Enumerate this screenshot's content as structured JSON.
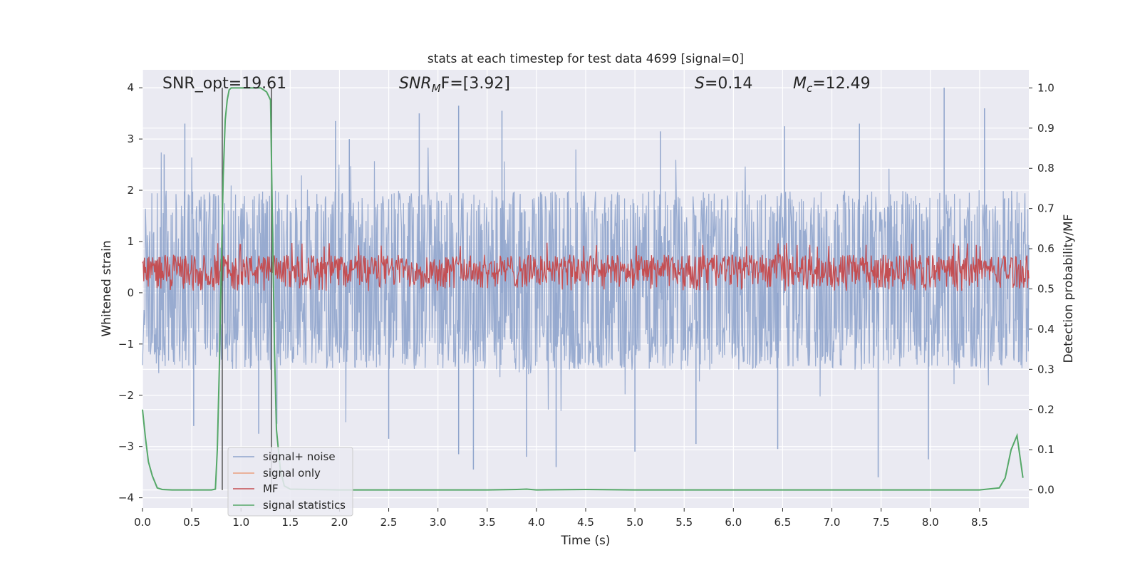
{
  "chart_data": {
    "type": "line",
    "title": "stats at each timestep for test data 4699 [signal=0]",
    "xlabel": "Time (s)",
    "ylabel": "Whitened strain",
    "ylabel_right": "Detection probability/MF",
    "xlim": [
      0,
      9
    ],
    "ylim": [
      -4.2,
      4.35
    ],
    "ylim_right": [
      -0.045,
      1.045
    ],
    "x_ticks": [
      0.0,
      0.5,
      1.0,
      1.5,
      2.0,
      2.5,
      3.0,
      3.5,
      4.0,
      4.5,
      5.0,
      5.5,
      6.0,
      6.5,
      7.0,
      7.5,
      8.0,
      8.5
    ],
    "x_tick_labels": [
      "0.0",
      "0.5",
      "1.0",
      "1.5",
      "2.0",
      "2.5",
      "3.0",
      "3.5",
      "4.0",
      "4.5",
      "5.0",
      "5.5",
      "6.0",
      "6.5",
      "7.0",
      "7.5",
      "8.0",
      "8.5"
    ],
    "y_ticks": [
      4,
      3,
      2,
      1,
      0,
      -1,
      -2,
      -3,
      -4
    ],
    "y_tick_labels": [
      "4",
      "3",
      "2",
      "1",
      "0",
      "−1",
      "−2",
      "−3",
      "−4"
    ],
    "y_right_ticks": [
      1.0,
      0.9,
      0.8,
      0.7,
      0.6,
      0.5,
      0.4,
      0.3,
      0.2,
      0.1,
      0.0
    ],
    "y_right_tick_labels": [
      "1.0",
      "0.9",
      "0.8",
      "0.7",
      "0.6",
      "0.5",
      "0.4",
      "0.3",
      "0.2",
      "0.1",
      "0.0"
    ],
    "grid": true,
    "legend_position": "lower-left",
    "annotations": {
      "snr_opt": "SNR_opt=19.61",
      "snr_mf_main": "SNR",
      "snr_mf_sub": "M",
      "snr_mf_rest": "F=[3.92]",
      "s_main": "S",
      "s_rest": "=0.14",
      "mc_main": "M",
      "mc_sub": "c",
      "mc_rest": "=12.49"
    },
    "vlines_x": [
      0.81,
      1.31
    ],
    "series": [
      {
        "name": "signal+ noise",
        "color": "#8fa4cc",
        "axis": "left",
        "kind": "noise",
        "typical_range": [
          -1.5,
          2.0
        ],
        "peaks": [
          [
            0.22,
            2.7
          ],
          [
            0.43,
            3.3
          ],
          [
            1.96,
            3.35
          ],
          [
            2.81,
            3.5
          ],
          [
            3.21,
            3.65
          ],
          [
            3.65,
            3.55
          ],
          [
            6.52,
            3.25
          ],
          [
            7.28,
            3.3
          ],
          [
            8.14,
            4.0
          ],
          [
            8.55,
            3.6
          ],
          [
            2.1,
            3.0
          ],
          [
            5.26,
            3.15
          ]
        ],
        "troughs": [
          [
            3.21,
            -3.15
          ],
          [
            3.36,
            -3.45
          ],
          [
            3.9,
            -3.2
          ],
          [
            4.2,
            -3.4
          ],
          [
            5.0,
            -3.1
          ],
          [
            7.47,
            -3.6
          ],
          [
            7.98,
            -3.25
          ],
          [
            0.52,
            -2.6
          ],
          [
            1.18,
            -2.75
          ],
          [
            5.62,
            -2.95
          ],
          [
            6.45,
            -3.05
          ],
          [
            2.5,
            -2.85
          ]
        ]
      },
      {
        "name": "signal only",
        "color": "#e9a07e",
        "axis": "left",
        "kind": "none"
      },
      {
        "name": "MF",
        "color": "#c44e52",
        "axis": "right",
        "kind": "noise",
        "typical_range": [
          0.5,
          0.585
        ],
        "max": 0.615,
        "min": 0.495
      },
      {
        "name": "signal statistics",
        "color": "#55a868",
        "axis": "right",
        "kind": "line",
        "x": [
          0.0,
          0.03,
          0.06,
          0.1,
          0.15,
          0.2,
          0.3,
          0.5,
          0.7,
          0.74,
          0.76,
          0.78,
          0.8,
          0.82,
          0.84,
          0.86,
          0.88,
          0.9,
          1.0,
          1.1,
          1.2,
          1.26,
          1.3,
          1.32,
          1.34,
          1.36,
          1.4,
          1.44,
          1.5,
          2.0,
          3.0,
          3.5,
          3.8,
          3.9,
          4.0,
          4.5,
          5.0,
          6.0,
          7.0,
          8.0,
          8.5,
          8.7,
          8.76,
          8.82,
          8.88,
          8.94
        ],
        "y": [
          0.2,
          0.13,
          0.07,
          0.035,
          0.005,
          0.001,
          0.0,
          0.0,
          0.0,
          0.002,
          0.1,
          0.3,
          0.55,
          0.78,
          0.92,
          0.97,
          0.995,
          1.0,
          1.0,
          1.0,
          1.0,
          0.99,
          0.97,
          0.65,
          0.35,
          0.15,
          0.05,
          0.01,
          0.002,
          0.0,
          0.0,
          0.0,
          0.001,
          0.002,
          0.0,
          0.001,
          0.0,
          0.0,
          0.0,
          0.0,
          0.0,
          0.005,
          0.03,
          0.1,
          0.135,
          0.03
        ]
      }
    ]
  }
}
